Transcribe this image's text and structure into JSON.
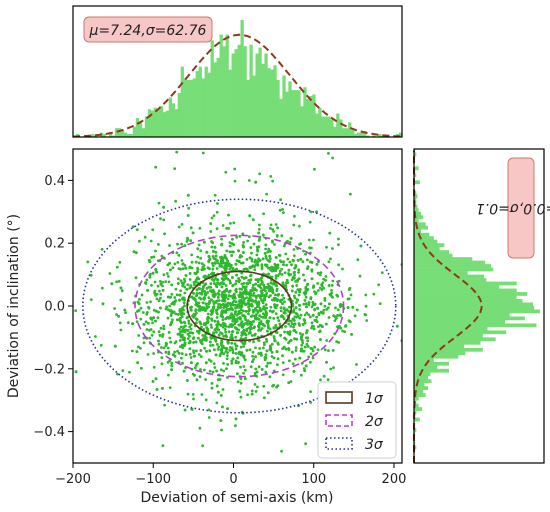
{
  "chart_data": [
    {
      "type": "scatter",
      "panel": "main",
      "xlabel": "Deviation of semi-axis (km)",
      "ylabel": "Deviation of inclination (°)",
      "xlim": [
        -200,
        210
      ],
      "ylim": [
        -0.5,
        0.5
      ],
      "xticks": [
        "−200",
        "−100",
        "0",
        "100",
        "200"
      ],
      "yticks": [
        "−0.4",
        "−0.2",
        "0.0",
        "0.2",
        "0.4"
      ],
      "point_color": "#2db82d",
      "point_count_approx": 2600,
      "cluster": {
        "x_center": 5,
        "x_spread": 62,
        "y_center": 0.0,
        "y_spread": 0.11
      },
      "ellipses": [
        {
          "label": "1σ",
          "cx": 7.24,
          "cy": 0.0,
          "rx": 65,
          "ry": 0.11,
          "style": "solid",
          "color": "#5a3a1e"
        },
        {
          "label": "2σ",
          "cx": 7.24,
          "cy": 0.0,
          "rx": 130,
          "ry": 0.225,
          "style": "dashed",
          "color": "#b040d0"
        },
        {
          "label": "3σ",
          "cx": 7.24,
          "cy": 0.0,
          "rx": 195,
          "ry": 0.34,
          "style": "dotted",
          "color": "#2030a0"
        }
      ],
      "legend": {
        "placement": "lower-right",
        "entries": [
          "1σ",
          "2σ",
          "3σ"
        ]
      }
    },
    {
      "type": "bar",
      "panel": "top-histogram",
      "orientation": "vertical",
      "xlim": [
        -200,
        210
      ],
      "bar_color": "#77dd77",
      "fit_curve": {
        "type": "normal",
        "mu": 7.24,
        "sigma": 62.76,
        "color": "#8b3a1a",
        "style": "dashed"
      },
      "annotation": "μ=7.24,σ=62.76"
    },
    {
      "type": "bar",
      "panel": "right-histogram",
      "orientation": "horizontal",
      "ylim": [
        -0.5,
        0.5
      ],
      "bar_color": "#77dd77",
      "fit_curve": {
        "type": "normal",
        "mu": 0.0,
        "sigma": 0.1,
        "color": "#8b3a1a",
        "style": "dashed"
      },
      "annotation": "μ=0.0,σ=0.1"
    }
  ]
}
